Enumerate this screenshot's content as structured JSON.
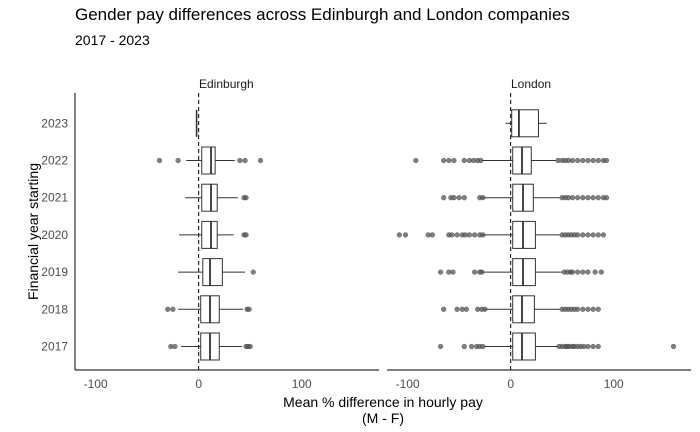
{
  "header": {
    "title": "Gender pay differences across Edinburgh and London companies",
    "subtitle": "2017 - 2023"
  },
  "chart_data": {
    "type": "boxplot",
    "orientation": "horizontal",
    "title": "Gender pay differences across Edinburgh and London companies",
    "subtitle": "2017 - 2023",
    "xlabel_line1": "Mean % difference in hourly pay",
    "xlabel_line2": "(M - F)",
    "ylabel": "Financial year starting",
    "xlim": [
      -120,
      175
    ],
    "xticks": [
      -100,
      0,
      100
    ],
    "x_tick_labels": [
      "-100",
      "0",
      "100"
    ],
    "categories": [
      "2017",
      "2018",
      "2019",
      "2020",
      "2021",
      "2022",
      "2023"
    ],
    "reference_line": 0,
    "grid": false,
    "outlier_color": "#555555",
    "panels": [
      {
        "name": "Edinburgh",
        "boxes": [
          {
            "year": "2017",
            "lw": -17,
            "q1": 2,
            "median": 11,
            "q3": 20,
            "uw": 42,
            "outliers": [
              -27,
              -23,
              46,
              48,
              50
            ]
          },
          {
            "year": "2018",
            "lw": -20,
            "q1": 2,
            "median": 11,
            "q3": 20,
            "uw": 43,
            "outliers": [
              -30,
              -25,
              47,
              49
            ]
          },
          {
            "year": "2019",
            "lw": -20,
            "q1": 4,
            "median": 11,
            "q3": 23,
            "uw": 45,
            "outliers": [
              53
            ]
          },
          {
            "year": "2020",
            "lw": -19,
            "q1": 3,
            "median": 12,
            "q3": 18,
            "uw": 34,
            "outliers": [
              44,
              46
            ]
          },
          {
            "year": "2021",
            "lw": -13,
            "q1": 3,
            "median": 12,
            "q3": 18,
            "uw": 38,
            "outliers": [
              44,
              46
            ]
          },
          {
            "year": "2022",
            "lw": -12,
            "q1": 3,
            "median": 12,
            "q3": 16,
            "uw": 35,
            "outliers": [
              -38,
              -20,
              40,
              45,
              60
            ]
          },
          {
            "year": "2023",
            "lw": -2,
            "q1": -2,
            "median": -2,
            "q3": -2,
            "uw": -2,
            "outliers": []
          }
        ]
      },
      {
        "name": "London",
        "boxes": [
          {
            "year": "2017",
            "lw": -26,
            "q1": 2,
            "median": 11,
            "q3": 24,
            "uw": 46,
            "outliers": [
              -68,
              -45,
              -38,
              -33,
              -30,
              -27,
              47,
              50,
              53,
              55,
              57,
              60,
              62,
              65,
              68,
              71,
              75,
              80,
              85,
              158
            ]
          },
          {
            "year": "2018",
            "lw": -25,
            "q1": 2,
            "median": 11,
            "q3": 23,
            "uw": 48,
            "outliers": [
              -65,
              -52,
              -47,
              -43,
              -32,
              -28,
              -25,
              50,
              53,
              56,
              59,
              62,
              65,
              70,
              75,
              80,
              85
            ]
          },
          {
            "year": "2019",
            "lw": -28,
            "q1": 2,
            "median": 12,
            "q3": 24,
            "uw": 50,
            "outliers": [
              -68,
              -60,
              -56,
              -35,
              -30,
              -28,
              52,
              55,
              58,
              60,
              65,
              70,
              75,
              82,
              88
            ]
          },
          {
            "year": "2020",
            "lw": -28,
            "q1": 2,
            "median": 12,
            "q3": 24,
            "uw": 48,
            "outliers": [
              -108,
              -102,
              -80,
              -76,
              -60,
              -57,
              -52,
              -47,
              -44,
              -40,
              -35,
              -30,
              -27,
              50,
              53,
              56,
              59,
              62,
              65,
              70,
              75,
              80,
              85,
              90
            ]
          },
          {
            "year": "2021",
            "lw": -28,
            "q1": 2,
            "median": 12,
            "q3": 22,
            "uw": 48,
            "outliers": [
              -65,
              -58,
              -55,
              -50,
              -45,
              -30,
              -27,
              50,
              53,
              56,
              60,
              65,
              70,
              75,
              80,
              85,
              90,
              93
            ]
          },
          {
            "year": "2022",
            "lw": -28,
            "q1": 2,
            "median": 11,
            "q3": 20,
            "uw": 44,
            "outliers": [
              -92,
              -65,
              -60,
              -55,
              -45,
              -40,
              -36,
              -32,
              -29,
              46,
              50,
              53,
              56,
              60,
              65,
              70,
              75,
              80,
              85,
              90,
              93
            ]
          },
          {
            "year": "2023",
            "lw": -5,
            "q1": 1,
            "median": 8,
            "q3": 27,
            "uw": 35,
            "outliers": []
          }
        ]
      }
    ]
  }
}
